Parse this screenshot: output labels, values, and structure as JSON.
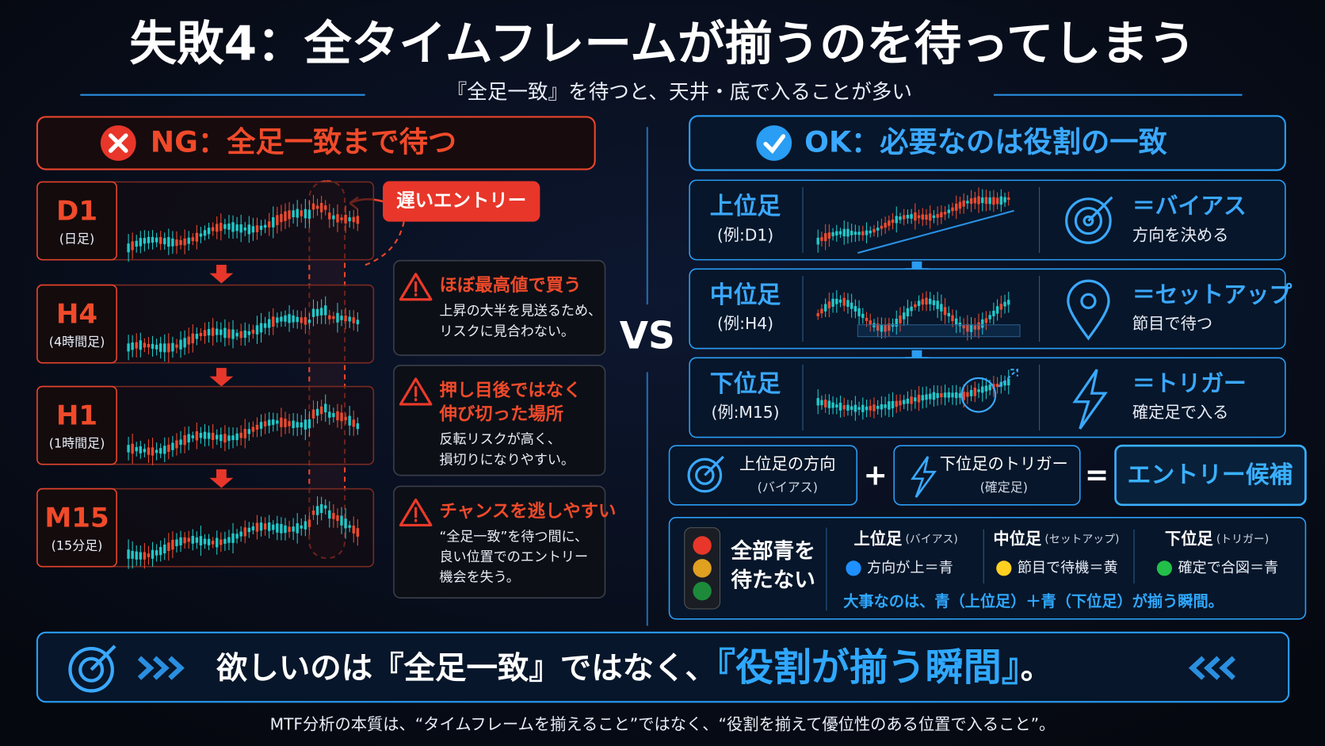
{
  "title": "失敗4：全タイムフレームが揃うのを待ってしまう",
  "subtitle": "『全足一致』を待つと、天井・底で入ることが多い",
  "ng": {
    "heading": "NG：全足一致まで待つ",
    "callout": "遅いエントリー",
    "timeframes": [
      {
        "label": "D1",
        "sub": "(日足)"
      },
      {
        "label": "H4",
        "sub": "(4時間足)"
      },
      {
        "label": "H1",
        "sub": "(1時間足)"
      },
      {
        "label": "M15",
        "sub": "(15分足)"
      }
    ],
    "warnings": [
      {
        "title": [
          "ほぼ最高値で買う"
        ],
        "body": [
          "上昇の大半を見送るため、",
          "リスクに見合わない。"
        ]
      },
      {
        "title": [
          "押し目後ではなく",
          "伸び切った場所"
        ],
        "body": [
          "反転リスクが高く、",
          "損切りになりやすい。"
        ]
      },
      {
        "title": [
          "チャンスを逃しやすい"
        ],
        "body": [
          "“全足一致”を待つ間に、",
          "良い位置でのエントリー",
          "機会を失う。"
        ]
      }
    ]
  },
  "vs": "VS",
  "ok": {
    "heading": "OK：必要なのは役割の一致",
    "rows": [
      {
        "label": "上位足",
        "sub": "(例:D1)",
        "role": "＝バイアス",
        "desc": "方向を決める"
      },
      {
        "label": "中位足",
        "sub": "(例:H4)",
        "role": "＝セットアップ",
        "desc": "節目で待つ"
      },
      {
        "label": "下位足",
        "sub": "(例:M15)",
        "role": "＝トリガー",
        "desc": "確定足で入る"
      }
    ],
    "formula": {
      "a": "上位足の方向",
      "a_sub": "(バイアス)",
      "plus": "+",
      "b": "下位足のトリガー",
      "b_sub": "(確定足)",
      "eq": "=",
      "result": "エントリー候補"
    },
    "signal": {
      "label": [
        "全部青を",
        "待たない"
      ],
      "columns": [
        {
          "head": "上位足",
          "head_sub": "(バイアス)",
          "text": "方向が上＝青"
        },
        {
          "head": "中位足",
          "head_sub": "(セットアップ)",
          "text": "節目で待機＝黄"
        },
        {
          "head": "下位足",
          "head_sub": "(トリガー)",
          "text": "確定で合図＝青"
        }
      ],
      "note": "大事なのは、青（上位足）＋青（下位足）が揃う瞬間。"
    }
  },
  "banner": {
    "text_a": "欲しいのは『全足一致』ではなく、",
    "text_b": "『役割が揃う瞬間』",
    "text_c": "。"
  },
  "footer": "MTF分析の本質は、“タイムフレームを揃えること”ではなく、“役割を揃えて優位性のある位置で入ること”。"
}
